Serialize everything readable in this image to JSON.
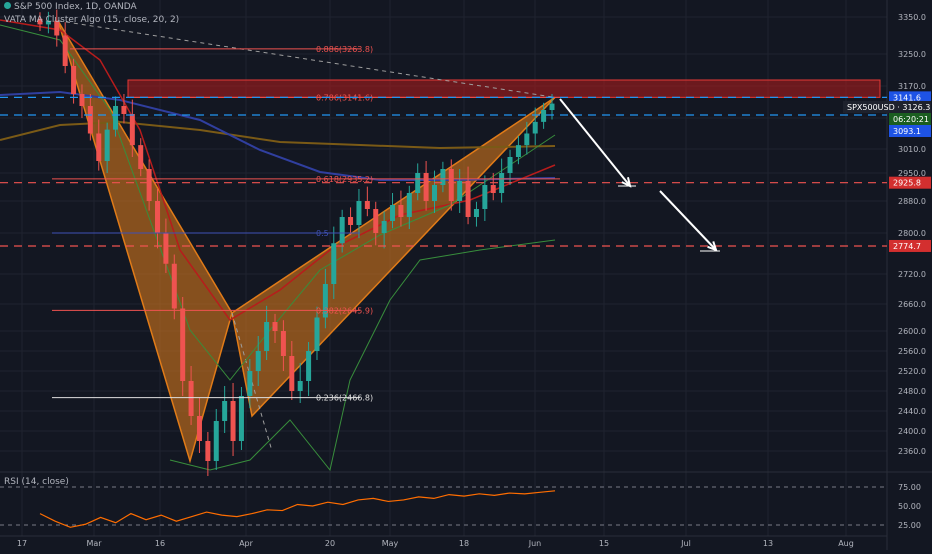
{
  "header": {
    "symbol_title": "S&P 500 Index, 1D, OANDA",
    "indicator_title": "VATA MA Cluster Algo (15, close, 20, 2)",
    "status_color": "#26a69a"
  },
  "rsi_panel": {
    "title": "RSI (14, close)",
    "ticks": [
      "75.00",
      "50.00",
      "25.00"
    ]
  },
  "price_tags": {
    "current_symbol": "SPX500USD",
    "current_price": "3126.3",
    "countdown": "06:20:21",
    "level_upper": "3141.6",
    "level_lower": "3093.1",
    "target_1": "2925.8",
    "target_2": "2774.7"
  },
  "fib_labels": [
    {
      "ratio": "0.886",
      "price": "3263.8",
      "text": "0.886(3263.8)"
    },
    {
      "ratio": "0.786",
      "price": "3141.6",
      "text": "0.786(3141.6)"
    },
    {
      "ratio": "0.618",
      "price": "2935.2",
      "text": "0.618(2935.2)"
    },
    {
      "ratio": "0.5",
      "price": "",
      "text": "0.5"
    },
    {
      "ratio": "0.382",
      "price": "2645.9",
      "text": "0.382(2645.9)"
    },
    {
      "ratio": "0.236",
      "price": "2466.8",
      "text": "0.236(2466.8)"
    }
  ],
  "chart_data": {
    "type": "candlestick",
    "title": "S&P 500 Index, 1D, OANDA",
    "x_ticks": [
      "17",
      "Mar",
      "16",
      "Apr",
      "20",
      "May",
      "18",
      "Jun",
      "15",
      "Jul",
      "13",
      "Aug"
    ],
    "y_ticks": [
      3350,
      3250,
      3170,
      3090,
      3010,
      2950,
      2880,
      2800,
      2720,
      2660,
      2600,
      2560,
      2520,
      2480,
      2440,
      2400,
      2360
    ],
    "y_tick_labels": [
      "3350.0",
      "3250.0",
      "3170.0",
      "3090.0",
      "3010.0",
      "2950.0",
      "2880.0",
      "2800.0",
      "2720.0",
      "2660.0",
      "2600.0",
      "2560.0",
      "2520.0",
      "2480.0",
      "2440.0",
      "2400.0",
      "2360.0"
    ],
    "ohlc_close_path": [
      3330,
      3340,
      3300,
      3220,
      3150,
      3120,
      3050,
      2980,
      3060,
      3120,
      3100,
      3020,
      2960,
      2880,
      2800,
      2740,
      2650,
      2500,
      2430,
      2380,
      2340,
      2420,
      2460,
      2380,
      2470,
      2520,
      2560,
      2620,
      2600,
      2550,
      2480,
      2500,
      2560,
      2630,
      2700,
      2780,
      2840,
      2820,
      2880,
      2860,
      2800,
      2830,
      2870,
      2840,
      2900,
      2950,
      2880,
      2920,
      2960,
      2880,
      2930,
      2840,
      2860,
      2920,
      2900,
      2950,
      2990,
      3020,
      3050,
      3080,
      3110,
      3126
    ],
    "harmonic_pattern": {
      "points_price": [
        3340,
        2340,
        2640,
        2430,
        3141.6
      ],
      "fill_color": "#d4761c"
    },
    "resistance_zone": {
      "low": 3141.6,
      "high": 3185,
      "color": "#b71c1c"
    },
    "target_levels": [
      2925.8,
      2774.7
    ],
    "rsi_values": [
      40,
      30,
      22,
      26,
      35,
      28,
      40,
      32,
      38,
      30,
      36,
      42,
      38,
      36,
      40,
      45,
      44,
      52,
      50,
      55,
      52,
      58,
      60,
      56,
      58,
      62,
      60,
      65,
      63,
      66,
      64,
      67,
      66,
      68,
      70
    ],
    "colors": {
      "up": "#26a69a",
      "down": "#ef5350",
      "grid": "#1f2330",
      "level": "#ef5350",
      "blue_level": "#2196f3"
    }
  }
}
